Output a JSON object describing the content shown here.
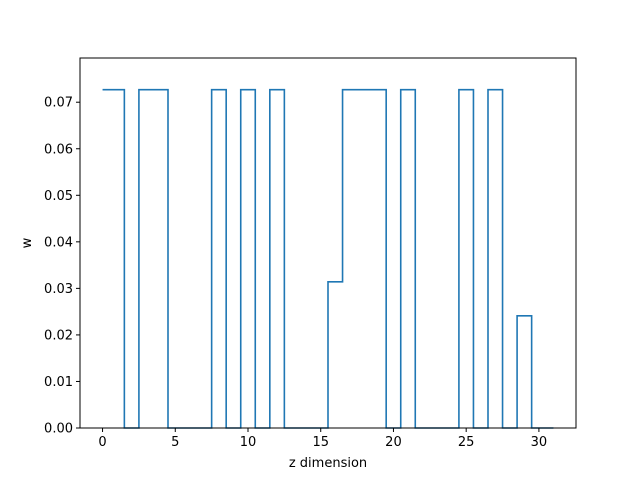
{
  "chart_data": {
    "type": "line",
    "step": "mid",
    "title": "",
    "xlabel": "z dimension",
    "ylabel": "w",
    "xlim": [
      -1.55,
      32.55
    ],
    "ylim": [
      0.0,
      0.0795
    ],
    "xticks": [
      0,
      5,
      10,
      15,
      20,
      25,
      30
    ],
    "xtick_labels": [
      "0",
      "5",
      "10",
      "15",
      "20",
      "25",
      "30"
    ],
    "yticks": [
      0.0,
      0.01,
      0.02,
      0.03,
      0.04,
      0.05,
      0.06,
      0.07
    ],
    "ytick_labels": [
      "0.00",
      "0.01",
      "0.02",
      "0.03",
      "0.04",
      "0.05",
      "0.06",
      "0.07"
    ],
    "grid": false,
    "legend": "none",
    "series": [
      {
        "color": "#1f77b4",
        "x": [
          0,
          1,
          2,
          3,
          4,
          5,
          6,
          7,
          8,
          9,
          10,
          11,
          12,
          13,
          14,
          15,
          16,
          17,
          18,
          19,
          20,
          21,
          22,
          23,
          24,
          25,
          26,
          27,
          28,
          29,
          30,
          31
        ],
        "y": [
          0.0727,
          0.0727,
          0.0,
          0.0727,
          0.0727,
          0.0,
          0.0,
          0.0,
          0.0727,
          0.0,
          0.0727,
          0.0,
          0.0727,
          0.0,
          0.0,
          0.0,
          0.0314,
          0.0727,
          0.0727,
          0.0727,
          0.0,
          0.0727,
          0.0,
          0.0,
          0.0,
          0.0727,
          0.0,
          0.0727,
          0.0,
          0.0241,
          0.0,
          0.0
        ]
      }
    ]
  }
}
